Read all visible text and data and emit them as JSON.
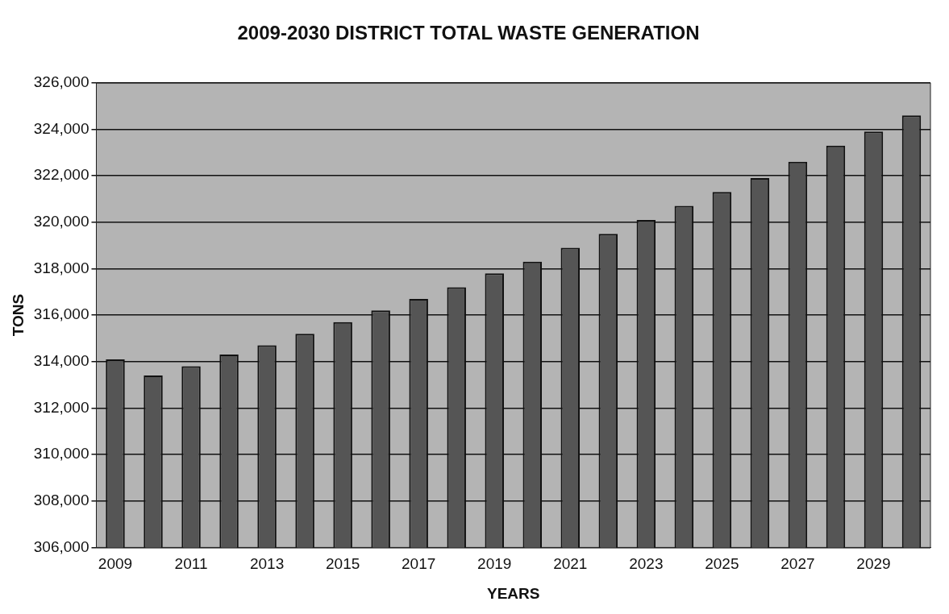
{
  "chart_data": {
    "type": "bar",
    "title": "2009-2030 DISTRICT TOTAL WASTE GENERATION",
    "xlabel": "YEARS",
    "ylabel": "TONS",
    "categories": [
      "2009",
      null,
      "2011",
      null,
      "2013",
      null,
      "2015",
      null,
      "2017",
      null,
      "2019",
      null,
      "2021",
      null,
      "2023",
      null,
      "2025",
      null,
      "2027",
      null,
      "2029",
      null
    ],
    "values": [
      314100,
      313400,
      313800,
      314300,
      314700,
      315200,
      315700,
      316200,
      316700,
      317200,
      317800,
      318300,
      318900,
      319500,
      320100,
      320700,
      321300,
      321900,
      322600,
      323300,
      323900,
      324600
    ],
    "color": "#555555",
    "ylim": [
      306000,
      326000
    ],
    "yticks": [
      {
        "value": 306000,
        "label": "306,000"
      },
      {
        "value": 308000,
        "label": "308,000"
      },
      {
        "value": 310000,
        "label": "310,000"
      },
      {
        "value": 312000,
        "label": "312,000"
      },
      {
        "value": 314000,
        "label": "314,000"
      },
      {
        "value": 316000,
        "label": "316,000"
      },
      {
        "value": 318000,
        "label": "318,000"
      },
      {
        "value": 320000,
        "label": "320,000"
      },
      {
        "value": 322000,
        "label": "322,000"
      },
      {
        "value": 324000,
        "label": "324,000"
      },
      {
        "value": 326000,
        "label": "326,000"
      }
    ],
    "grid": "y",
    "legend": false
  }
}
